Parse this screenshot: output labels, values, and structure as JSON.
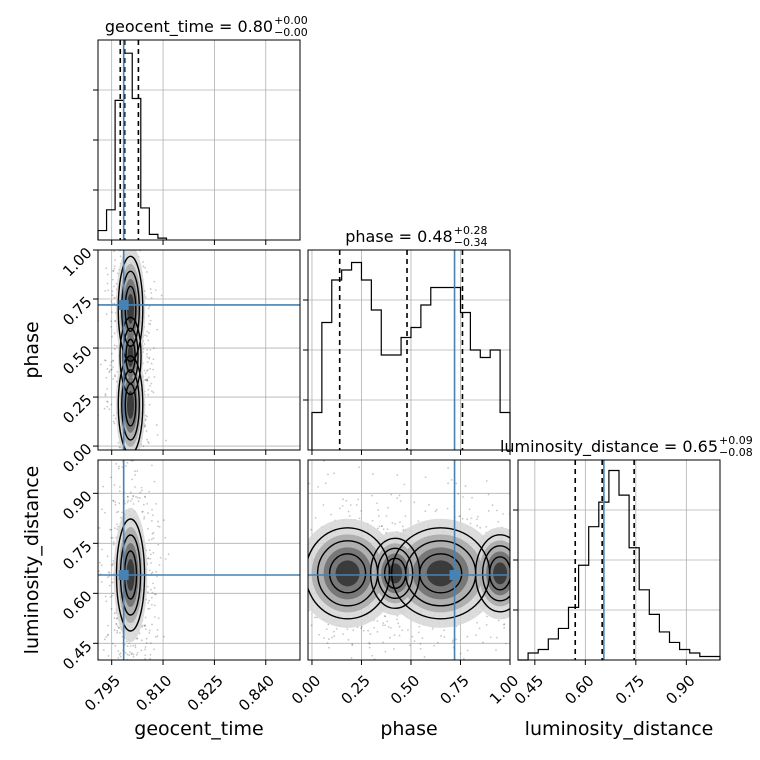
{
  "chart_data": {
    "type": "corner",
    "parameters": [
      {
        "name": "geocent_time",
        "title_prefix": "geocent_time = ",
        "median": "0.80",
        "err_plus": "+0.00",
        "err_minus": "−0.00",
        "range": [
          0.791,
          0.85
        ],
        "ticks": [
          0.795,
          0.81,
          0.825,
          0.84
        ],
        "tick_labels": [
          "0.795",
          "0.810",
          "0.825",
          "0.840"
        ],
        "truth": 0.7985,
        "quantiles": [
          0.7975,
          0.7988,
          0.8028
        ],
        "hist_edges": [
          0.791,
          0.7935,
          0.796,
          0.7985,
          0.801,
          0.8035,
          0.806,
          0.8085,
          0.811
        ],
        "hist_values": [
          5,
          16,
          74,
          99,
          75,
          17,
          3,
          1
        ],
        "hist_ymax": 106,
        "blob_y_center_for_lum": 0.8,
        "blob_x_center_for_phase": 0.8
      },
      {
        "name": "phase",
        "title_prefix": "phase = ",
        "median": "0.48",
        "err_plus": "+0.28",
        "err_minus": "−0.34",
        "range": [
          -0.02,
          1.0
        ],
        "ticks": [
          0.0,
          0.25,
          0.5,
          0.75,
          1.0
        ],
        "tick_labels": [
          "0.00",
          "0.25",
          "0.50",
          "0.75",
          "1.00"
        ],
        "truth": 0.72,
        "quantiles": [
          0.14,
          0.48,
          0.76
        ],
        "hist_edges": [
          0.0,
          0.05,
          0.1,
          0.15,
          0.2,
          0.25,
          0.3,
          0.35,
          0.4,
          0.45,
          0.5,
          0.55,
          0.6,
          0.65,
          0.7,
          0.75,
          0.8,
          0.85,
          0.9,
          0.95,
          1.0
        ],
        "hist_values": [
          15,
          51,
          68,
          72,
          75,
          68,
          56,
          38,
          38,
          45,
          49,
          58,
          65,
          65,
          65,
          55,
          40,
          37,
          40,
          15
        ],
        "hist_ymax": 80
      },
      {
        "name": "luminosity_distance",
        "title_prefix": "luminosity_distance = ",
        "median": "0.65",
        "err_plus": "+0.09",
        "err_minus": "−0.08",
        "range": [
          0.4,
          1.0
        ],
        "ticks": [
          0.45,
          0.6,
          0.75,
          0.9
        ],
        "tick_labels": [
          "0.45",
          "0.60",
          "0.75",
          "0.90"
        ],
        "truth": 0.655,
        "quantiles": [
          0.57,
          0.65,
          0.745
        ],
        "hist_edges": [
          0.4,
          0.43,
          0.46,
          0.49,
          0.52,
          0.55,
          0.58,
          0.61,
          0.64,
          0.67,
          0.7,
          0.73,
          0.76,
          0.79,
          0.82,
          0.85,
          0.88,
          0.91,
          0.94,
          0.97,
          1.0
        ],
        "hist_values": [
          0,
          2,
          3,
          6,
          9,
          15,
          27,
          38,
          45,
          54,
          47,
          32,
          20,
          13,
          8,
          5,
          3,
          2,
          1,
          1
        ],
        "hist_ymax": 57
      }
    ],
    "grid": true,
    "truth_color": "#4682b4",
    "contour_levels": 3
  }
}
